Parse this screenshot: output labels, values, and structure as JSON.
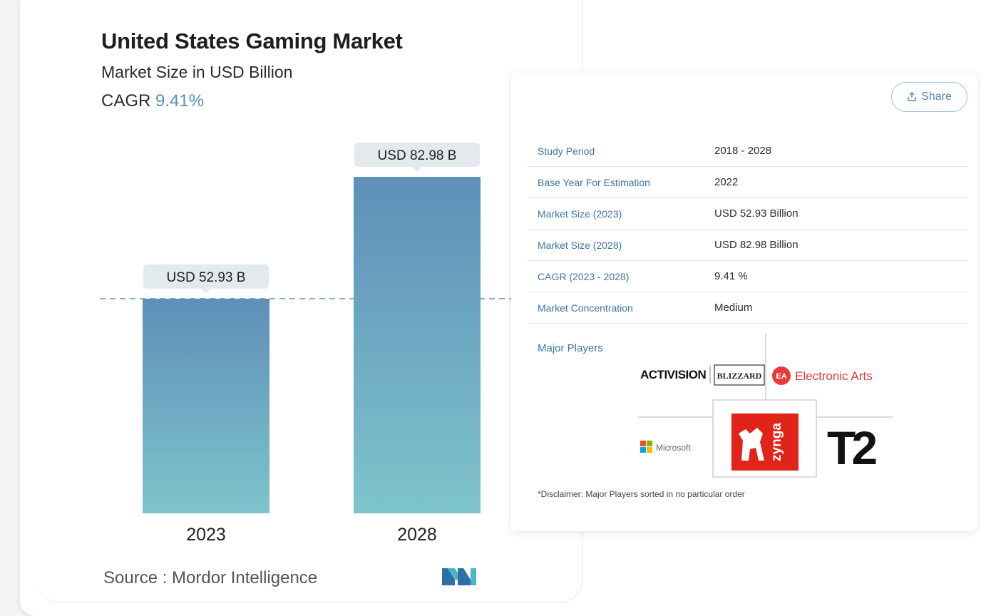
{
  "header": {
    "title": "United States Gaming Market",
    "subtitle": "Market Size in USD Billion",
    "cagr_label": "CAGR",
    "cagr_value": "9.41%"
  },
  "chart_data": {
    "type": "bar",
    "categories": [
      "2023",
      "2028"
    ],
    "values": [
      52.93,
      82.98
    ],
    "data_labels": [
      "USD 52.93 B",
      "USD 82.98 B"
    ],
    "title": "United States Gaming Market",
    "subtitle": "Market Size in USD Billion",
    "ylim": [
      0,
      90
    ],
    "reference_line": 52.93,
    "colors": {
      "bar_top": "#5f8fb8",
      "bar_bottom": "#7ec4cc",
      "label_bg": "#e3eaee",
      "dashed_line": "#6fa0c8"
    }
  },
  "footer": {
    "source": "Source :  Mordor Intelligence"
  },
  "share": {
    "label": "Share"
  },
  "info_table": [
    {
      "label": "Study Period",
      "value": "2018 - 2028"
    },
    {
      "label": "Base Year For Estimation",
      "value": "2022"
    },
    {
      "label": "Market Size (2023)",
      "value": "USD 52.93 Billion"
    },
    {
      "label": "Market Size (2028)",
      "value": "USD 82.98 Billion"
    },
    {
      "label": "CAGR (2023 - 2028)",
      "value": "9.41 %"
    },
    {
      "label": "Market Concentration",
      "value": "Medium"
    }
  ],
  "major_players": {
    "label": "Major Players",
    "logos": {
      "activision": "ACTIVISION",
      "blizzard": "BLIZZARD",
      "ea_badge": "EA",
      "ea": "Electronic Arts",
      "microsoft": "Microsoft",
      "zynga": "zynga",
      "t2": "T2"
    }
  },
  "disclaimer": "*Disclaimer: Major Players sorted in no particular order",
  "icons": [
    "share-icon",
    "mordor-intelligence-logo",
    "microsoft-logo",
    "zynga-logo",
    "ea-logo"
  ]
}
